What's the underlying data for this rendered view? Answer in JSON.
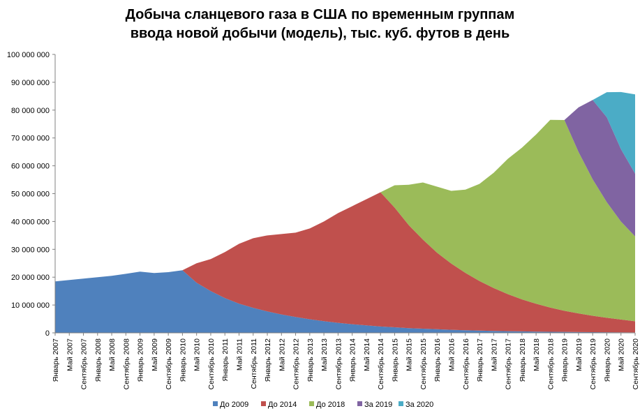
{
  "chart_data": {
    "type": "area",
    "stacked": true,
    "title": "Добыча сланцевого газа в США по временным группам",
    "subtitle": "ввода  новой добычи (модель), тыс. куб. футов в день",
    "xlabel": "",
    "ylabel": "",
    "ylim": [
      0,
      100000000
    ],
    "yticks": [
      "0",
      "10 000 000",
      "20 000 000",
      "30 000 000",
      "40 000 000",
      "50 000 000",
      "60 000 000",
      "70 000 000",
      "80 000 000",
      "90 000 000",
      "100 000 000"
    ],
    "ytick_values": [
      0,
      10000000,
      20000000,
      30000000,
      40000000,
      50000000,
      60000000,
      70000000,
      80000000,
      90000000,
      100000000
    ],
    "grid": false,
    "legend_position": "bottom",
    "x": [
      "Январь 2007",
      "Май 2007",
      "Сентябрь 2007",
      "Январь 2008",
      "Май 2008",
      "Сентябрь 2008",
      "Январь 2009",
      "Май 2009",
      "Сентябрь 2009",
      "Январь 2010",
      "Май 2010",
      "Сентябрь 2010",
      "Январь 2011",
      "Май 2011",
      "Сентябрь 2011",
      "Январь 2012",
      "Май 2012",
      "Сентябрь 2012",
      "Январь 2013",
      "Май 2013",
      "Сентябрь 2013",
      "Январь 2014",
      "Май 2014",
      "Сентябрь 2014",
      "Январь 2015",
      "Май 2015",
      "Сентябрь 2015",
      "Январь 2016",
      "Май 2016",
      "Сентябрь 2016",
      "Январь 2017",
      "Май 2017",
      "Сентябрь 2017",
      "Январь 2018",
      "Май 2018",
      "Сентябрь 2018",
      "Январь 2019",
      "Май 2019",
      "Сентябрь 2019",
      "Январь 2020",
      "Май 2020",
      "Сентябрь 2020"
    ],
    "series": [
      {
        "name": "До 2009",
        "color": "#4F81BD",
        "values": [
          18500000,
          19000000,
          19500000,
          20000000,
          20500000,
          21200000,
          22000000,
          21500000,
          21800000,
          22500000,
          18000000,
          15000000,
          12500000,
          10500000,
          9000000,
          7700000,
          6600000,
          5700000,
          4900000,
          4200000,
          3600000,
          3100000,
          2700000,
          2300000,
          2000000,
          1700000,
          1500000,
          1300000,
          1100000,
          950000,
          820000,
          700000,
          600000,
          520000,
          450000,
          390000,
          340000,
          290000,
          250000,
          220000,
          190000,
          160000
        ]
      },
      {
        "name": "До 2014",
        "color": "#C0504D",
        "values": [
          0,
          0,
          0,
          0,
          0,
          0,
          0,
          0,
          0,
          0,
          7000000,
          11500000,
          16500000,
          21500000,
          25000000,
          27300000,
          28900000,
          30300000,
          32600000,
          35800000,
          39400000,
          42400000,
          45300000,
          48200000,
          43000000,
          37000000,
          32000000,
          27500000,
          23800000,
          20600000,
          17800000,
          15400000,
          13300000,
          11500000,
          10000000,
          8700000,
          7600000,
          6700000,
          5900000,
          5200000,
          4600000,
          4000000
        ]
      },
      {
        "name": "До 2018",
        "color": "#9BBB59",
        "values": [
          0,
          0,
          0,
          0,
          0,
          0,
          0,
          0,
          0,
          0,
          0,
          0,
          0,
          0,
          0,
          0,
          0,
          0,
          0,
          0,
          0,
          0,
          0,
          0,
          8000000,
          14500000,
          20500000,
          23700000,
          26100000,
          29900000,
          34900000,
          41400000,
          48600000,
          54500000,
          60800000,
          67400000,
          68500000,
          58000000,
          49000000,
          41500000,
          35200000,
          30500000
        ]
      },
      {
        "name": "За 2019",
        "color": "#8064A2",
        "values": [
          0,
          0,
          0,
          0,
          0,
          0,
          0,
          0,
          0,
          0,
          0,
          0,
          0,
          0,
          0,
          0,
          0,
          0,
          0,
          0,
          0,
          0,
          0,
          0,
          0,
          0,
          0,
          0,
          0,
          0,
          0,
          0,
          0,
          0,
          0,
          0,
          0,
          16000000,
          28500000,
          30500000,
          26000000,
          22500000
        ]
      },
      {
        "name": "За 2020",
        "color": "#4BACC6",
        "values": [
          0,
          0,
          0,
          0,
          0,
          0,
          0,
          0,
          0,
          0,
          0,
          0,
          0,
          0,
          0,
          0,
          0,
          0,
          0,
          0,
          0,
          0,
          0,
          0,
          0,
          0,
          0,
          0,
          0,
          0,
          0,
          0,
          0,
          0,
          0,
          0,
          0,
          0,
          0,
          9000000,
          20500000,
          28500000
        ]
      }
    ]
  }
}
